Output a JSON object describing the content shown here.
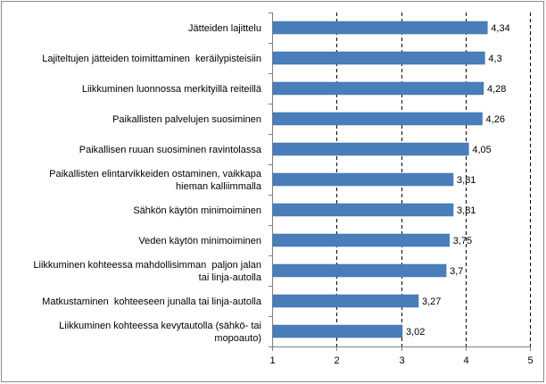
{
  "chart_data": {
    "type": "bar",
    "orientation": "horizontal",
    "title": "",
    "xlabel": "",
    "ylabel": "",
    "xlim": [
      1,
      5
    ],
    "xticks": [
      1,
      2,
      3,
      4,
      5
    ],
    "xtick_labels": [
      "1",
      "2",
      "3",
      "4",
      "5"
    ],
    "grid": "vertical dashed",
    "bar_color": "#4a7ebb",
    "categories": [
      [
        "Jätteiden lajittelu"
      ],
      [
        "Lajiteltujen jätteiden toimittaminen  keräilypisteisiin"
      ],
      [
        "Liikkuminen luonnossa merkityillä reiteillä"
      ],
      [
        "Paikallisten palvelujen suosiminen"
      ],
      [
        "Paikallisen ruuan suosiminen ravintolassa"
      ],
      [
        "Paikallisten elintarvikkeiden ostaminen, vaikkapa",
        "hieman kalliimmalla"
      ],
      [
        "Sähkön käytön minimoiminen"
      ],
      [
        "Veden käytön minimoiminen"
      ],
      [
        "Liikkuminen kohteessa mahdollisimman  paljon jalan",
        "tai linja-autolla"
      ],
      [
        "Matkustaminen  kohteeseen junalla tai linja-autolla"
      ],
      [
        "Liikkuminen kohteessa kevytautolla (sähkö- tai",
        "mopoauto)"
      ]
    ],
    "values": [
      4.34,
      4.3,
      4.28,
      4.26,
      4.05,
      3.81,
      3.81,
      3.75,
      3.7,
      3.27,
      3.02
    ],
    "value_labels": [
      "4,34",
      "4,3",
      "4,28",
      "4,26",
      "4,05",
      "3,81",
      "3,81",
      "3,75",
      "3,7",
      "3,27",
      "3,02"
    ]
  }
}
